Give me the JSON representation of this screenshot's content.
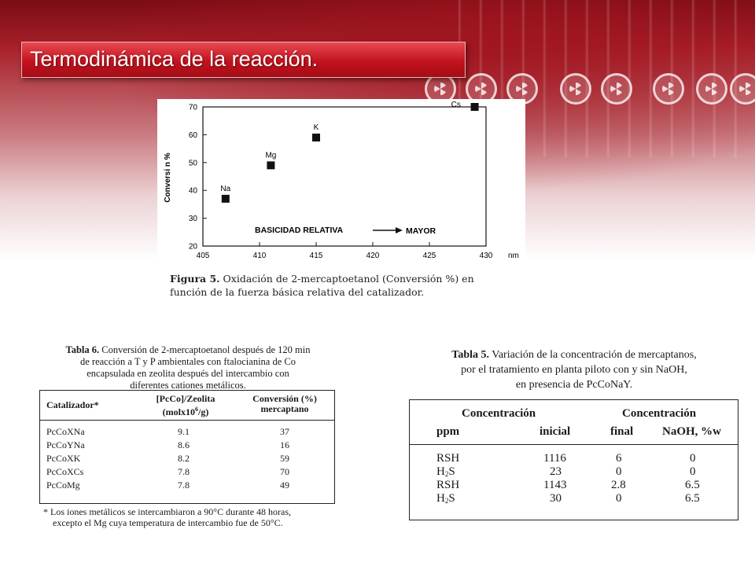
{
  "slide": {
    "title": "Termodinámica de la reacción."
  },
  "decor": {
    "background_icon": "radiation-hazard-icon",
    "accent_color": "#c3121d"
  },
  "figure5": {
    "caption_label": "Figura 5.",
    "caption_text": "Oxidación de 2-mercaptoetanol (Conversión %) en función de la fuerza básica relativa del catalizador.",
    "annotation": "BASICIDAD RELATIVA",
    "annotation_right": "MAYOR",
    "annotation_arrow_icon": "right-arrow-icon",
    "chart_data": {
      "type": "scatter",
      "title": "",
      "xlabel": "nm",
      "ylabel": "Conversi n %",
      "xlim": [
        405,
        430
      ],
      "ylim": [
        20,
        70
      ],
      "xticks": [
        405,
        410,
        415,
        420,
        425,
        430
      ],
      "yticks": [
        20,
        30,
        40,
        50,
        60,
        70
      ],
      "grid": false,
      "legend": "none",
      "points": [
        {
          "label": "Na",
          "x": 407,
          "y": 37
        },
        {
          "label": "Mg",
          "x": 411,
          "y": 49
        },
        {
          "label": "K",
          "x": 415,
          "y": 59
        },
        {
          "label": "Cs",
          "x": 429,
          "y": 70
        }
      ]
    }
  },
  "tabla6": {
    "caption_label": "Tabla 6.",
    "caption_line1": "Conversión de 2-mercaptoetanol después de 120 min",
    "caption_line2": "de reacción a T y P ambientales con ftalocianina de Co",
    "caption_line3": "encapsulada en zeolita después del intercambio con",
    "caption_line4": "diferentes cationes metálicos.",
    "headers": {
      "catalizador": "Catalizador*",
      "pcco_line1": "[PcCo]/Zeolita",
      "pcco_line2_a": "(molx10",
      "pcco_line2_sup": "6",
      "pcco_line2_b": "/g)",
      "conv_line1": "Conversión (%)",
      "conv_line2": "mercaptano"
    },
    "rows": [
      {
        "catalizador": "PcCoXNa",
        "pcco": "9.1",
        "conversion": "37"
      },
      {
        "catalizador": "PcCoYNa",
        "pcco": "8.6",
        "conversion": "16"
      },
      {
        "catalizador": "PcCoXK",
        "pcco": "8.2",
        "conversion": "59"
      },
      {
        "catalizador": "PcCoXCs",
        "pcco": "7.8",
        "conversion": "70"
      },
      {
        "catalizador": "PcCoMg",
        "pcco": "7.8",
        "conversion": "49"
      }
    ],
    "footnote_line1": "* Los iones metálicos se intercambiaron a 90°C durante 48 horas,",
    "footnote_line2": "excepto el Mg cuya temperatura de intercambio fue de 50°C."
  },
  "tabla5": {
    "caption_label": "Tabla 5.",
    "caption_line1": "Variación de la concentración de mercaptanos,",
    "caption_line2": "por el tratamiento en planta piloto con y sin NaOH,",
    "caption_line3": "en presencia de PcCoNaY.",
    "headers": {
      "group1": "Concentración",
      "group2": "Concentración",
      "ppm": "ppm",
      "inicial": "inicial",
      "final": "final",
      "naoh": "NaOH, %w"
    },
    "rows": [
      {
        "compound": "RSH",
        "sub": "",
        "compound_tail": "",
        "inicial": "1116",
        "final": "6",
        "naoh": "0"
      },
      {
        "compound": "H",
        "sub": "2",
        "compound_tail": "S",
        "inicial": "23",
        "final": "0",
        "naoh": "0"
      },
      {
        "compound": "RSH",
        "sub": "",
        "compound_tail": "",
        "inicial": "1143",
        "final": "2.8",
        "naoh": "6.5"
      },
      {
        "compound": "H",
        "sub": "2",
        "compound_tail": "S",
        "inicial": "30",
        "final": "0",
        "naoh": "6.5"
      }
    ]
  }
}
